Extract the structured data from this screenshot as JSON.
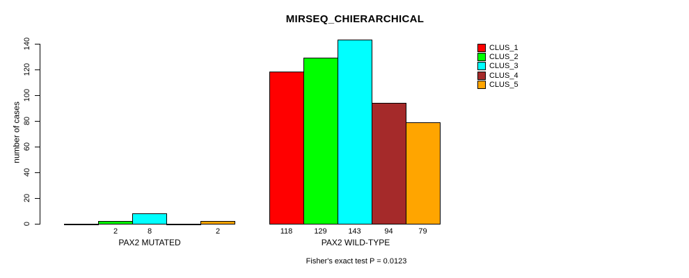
{
  "title": "MIRSEQ_CHIERARCHICAL",
  "caption": "Fisher's exact test P = 0.0123",
  "y_axis": {
    "label": "number of cases",
    "ticks": [
      0,
      20,
      40,
      60,
      80,
      100,
      120,
      140
    ]
  },
  "groups": [
    "PAX2 MUTATED",
    "PAX2 WILD-TYPE"
  ],
  "legend": {
    "position": "right",
    "items": [
      {
        "label": "CLUS_1",
        "color": "#FF0000"
      },
      {
        "label": "CLUS_2",
        "color": "#00FF00"
      },
      {
        "label": "CLUS_3",
        "color": "#00FFFF"
      },
      {
        "label": "CLUS_4",
        "color": "#A52A2A"
      },
      {
        "label": "CLUS_5",
        "color": "#FFA500"
      }
    ]
  },
  "chart_data": {
    "type": "bar",
    "title": "MIRSEQ_CHIERARCHICAL",
    "xlabel": "",
    "ylabel": "number of cases",
    "categories": [
      "PAX2 MUTATED",
      "PAX2 WILD-TYPE"
    ],
    "series": [
      {
        "name": "CLUS_1",
        "color": "#FF0000",
        "values": [
          0,
          118
        ]
      },
      {
        "name": "CLUS_2",
        "color": "#00FF00",
        "values": [
          2,
          129
        ]
      },
      {
        "name": "CLUS_3",
        "color": "#00FFFF",
        "values": [
          8,
          143
        ]
      },
      {
        "name": "CLUS_4",
        "color": "#A52A2A",
        "values": [
          0,
          94
        ]
      },
      {
        "name": "CLUS_5",
        "color": "#FFA500",
        "values": [
          2,
          79
        ]
      }
    ],
    "bar_value_labels": {
      "PAX2 MUTATED": [
        null,
        2,
        8,
        null,
        2
      ],
      "PAX2 WILD-TYPE": [
        118,
        129,
        143,
        94,
        79
      ]
    },
    "yticks": [
      0,
      20,
      40,
      60,
      80,
      100,
      120,
      140
    ],
    "ylim": [
      0,
      145
    ],
    "grid": false,
    "legend_position": "right",
    "annotation": "Fisher's exact test P = 0.0123"
  }
}
